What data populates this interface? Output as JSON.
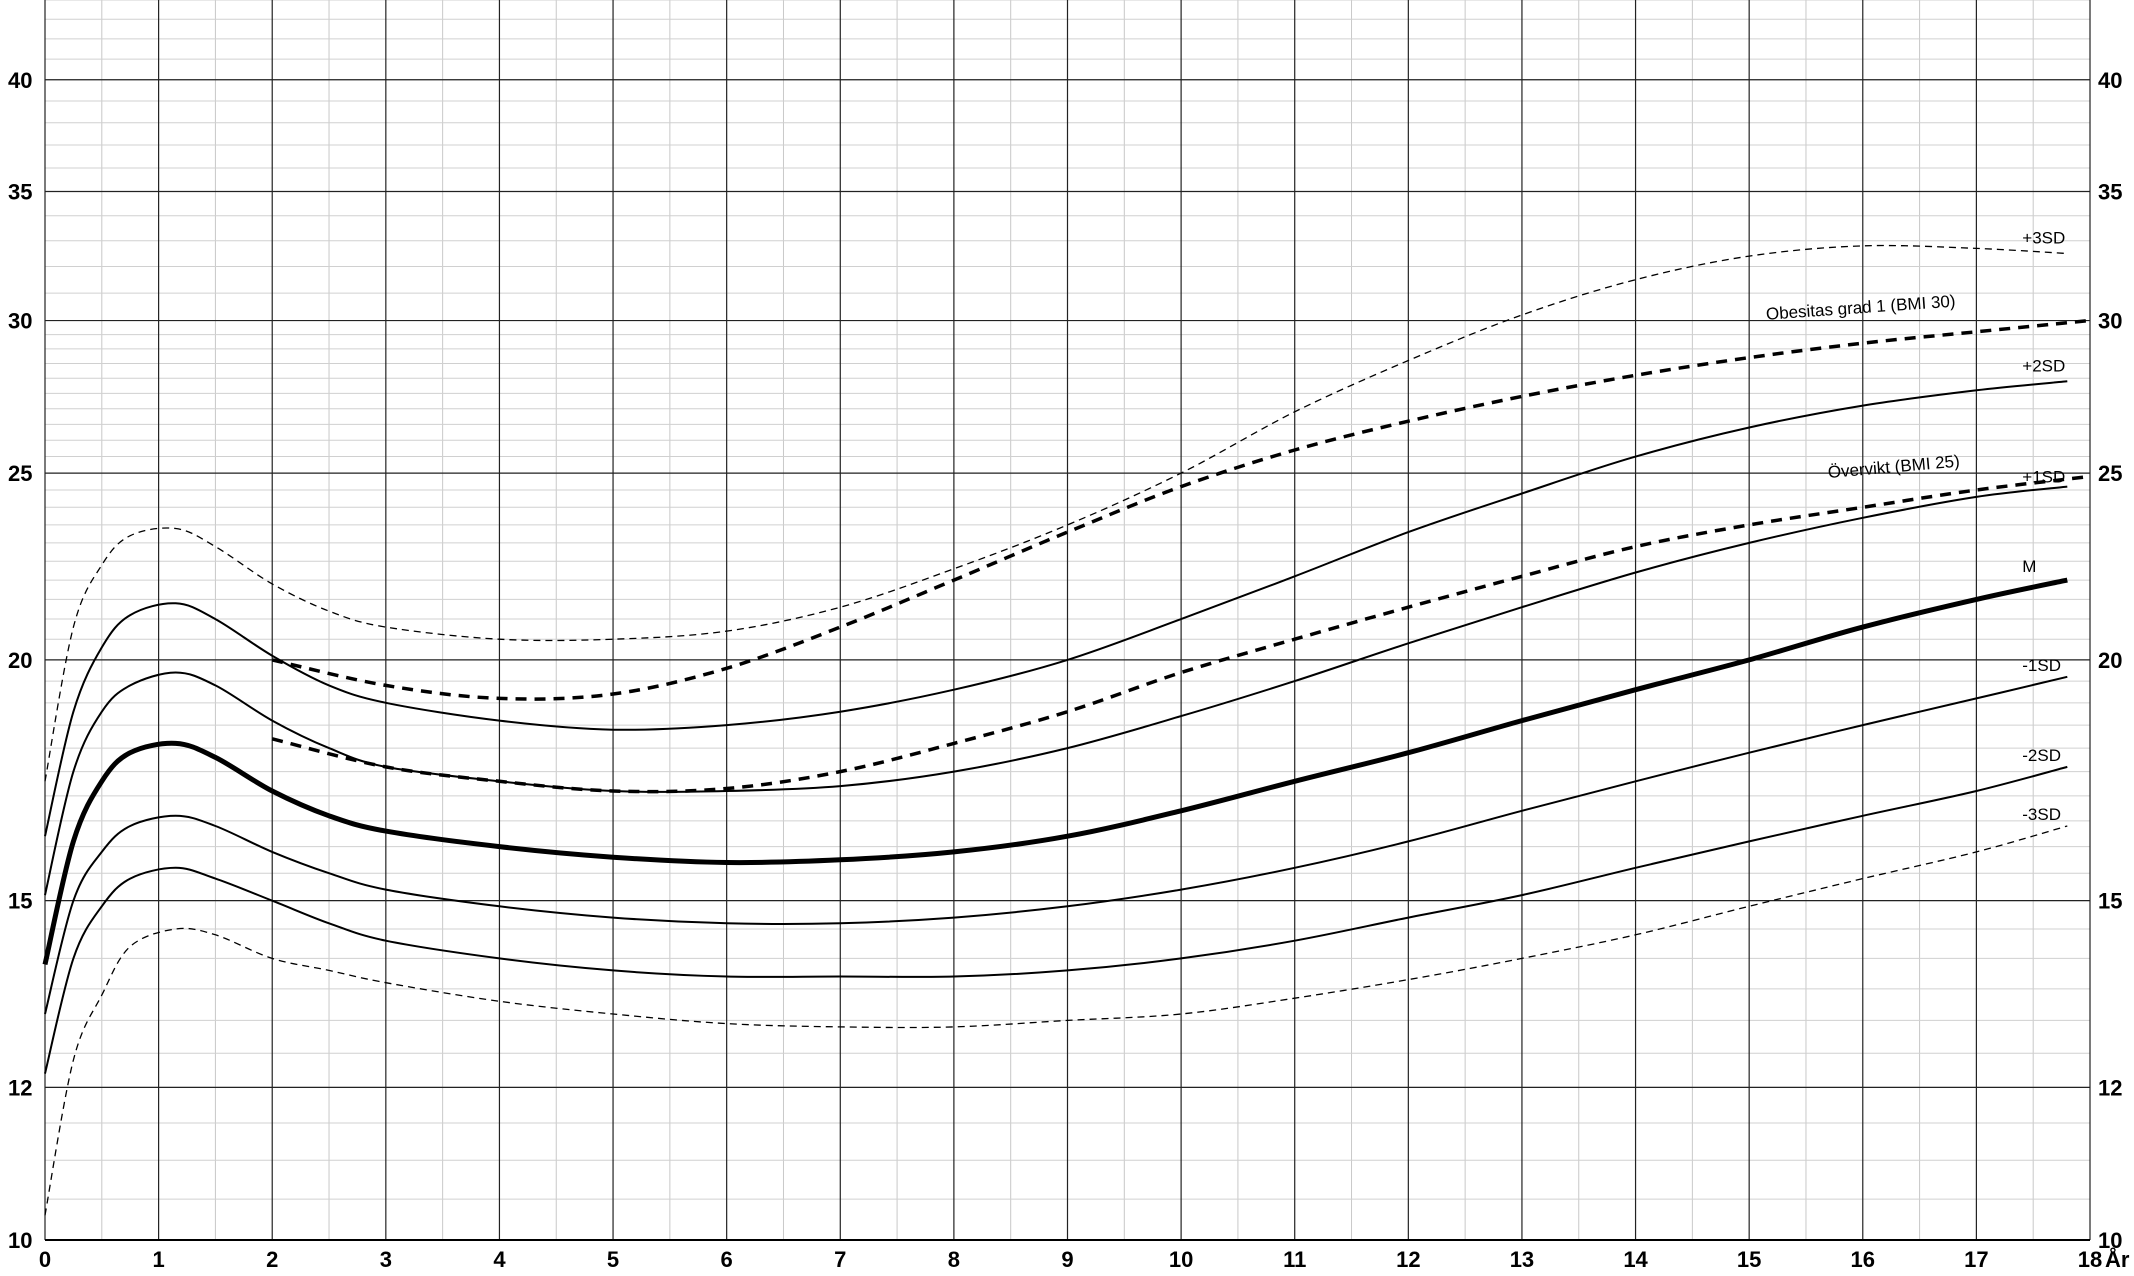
{
  "chart_data": {
    "type": "line",
    "title": "",
    "xlabel": "År",
    "ylabel": "",
    "y_scale": "log",
    "xlim": [
      0,
      18
    ],
    "ylim": [
      10,
      44
    ],
    "grid": true,
    "x_ticks": [
      "0",
      "1",
      "2",
      "3",
      "4",
      "5",
      "6",
      "7",
      "8",
      "9",
      "10",
      "11",
      "12",
      "13",
      "14",
      "15",
      "16",
      "17",
      "18"
    ],
    "y_ticks": [
      {
        "value": 10,
        "label": "10"
      },
      {
        "value": 12,
        "label": "12"
      },
      {
        "value": 15,
        "label": "15"
      },
      {
        "value": 20,
        "label": "20"
      },
      {
        "value": 25,
        "label": "25"
      },
      {
        "value": 30,
        "label": "30"
      },
      {
        "value": 35,
        "label": "35"
      },
      {
        "value": 40,
        "label": "40"
      }
    ],
    "series": [
      {
        "name": "+3SD",
        "style": "thin-dashed",
        "points": [
          [
            0,
            17.3
          ],
          [
            0.25,
            20.8
          ],
          [
            0.5,
            22.4
          ],
          [
            0.75,
            23.2
          ],
          [
            1.15,
            23.4
          ],
          [
            1.5,
            22.9
          ],
          [
            2,
            21.9
          ],
          [
            2.5,
            21.2
          ],
          [
            3,
            20.8
          ],
          [
            4,
            20.5
          ],
          [
            5,
            20.5
          ],
          [
            6,
            20.7
          ],
          [
            7,
            21.3
          ],
          [
            8,
            22.3
          ],
          [
            9,
            23.5
          ],
          [
            10,
            25.0
          ],
          [
            11,
            26.9
          ],
          [
            12,
            28.6
          ],
          [
            13,
            30.2
          ],
          [
            14,
            31.5
          ],
          [
            15,
            32.4
          ],
          [
            16,
            32.8
          ],
          [
            17,
            32.7
          ],
          [
            17.8,
            32.5
          ]
        ]
      },
      {
        "name": "+2SD",
        "style": "solid",
        "points": [
          [
            0,
            16.2
          ],
          [
            0.25,
            18.8
          ],
          [
            0.5,
            20.3
          ],
          [
            0.75,
            21.1
          ],
          [
            1.15,
            21.4
          ],
          [
            1.5,
            21.0
          ],
          [
            2,
            20.1
          ],
          [
            2.5,
            19.4
          ],
          [
            3,
            19.0
          ],
          [
            4,
            18.6
          ],
          [
            5,
            18.4
          ],
          [
            6,
            18.5
          ],
          [
            7,
            18.8
          ],
          [
            8,
            19.3
          ],
          [
            9,
            20.0
          ],
          [
            10,
            21.0
          ],
          [
            11,
            22.1
          ],
          [
            12,
            23.3
          ],
          [
            13,
            24.4
          ],
          [
            14,
            25.5
          ],
          [
            15,
            26.4
          ],
          [
            16,
            27.1
          ],
          [
            17,
            27.6
          ],
          [
            17.8,
            27.9
          ]
        ]
      },
      {
        "name": "+1SD",
        "style": "solid",
        "points": [
          [
            0,
            15.1
          ],
          [
            0.25,
            17.5
          ],
          [
            0.5,
            18.8
          ],
          [
            0.75,
            19.4
          ],
          [
            1.15,
            19.7
          ],
          [
            1.5,
            19.4
          ],
          [
            2,
            18.6
          ],
          [
            2.5,
            18.0
          ],
          [
            3,
            17.6
          ],
          [
            4,
            17.3
          ],
          [
            5,
            17.1
          ],
          [
            6,
            17.1
          ],
          [
            7,
            17.2
          ],
          [
            8,
            17.5
          ],
          [
            9,
            18.0
          ],
          [
            10,
            18.7
          ],
          [
            11,
            19.5
          ],
          [
            12,
            20.4
          ],
          [
            13,
            21.3
          ],
          [
            14,
            22.2
          ],
          [
            15,
            23.0
          ],
          [
            16,
            23.7
          ],
          [
            17,
            24.3
          ],
          [
            17.8,
            24.6
          ]
        ]
      },
      {
        "name": "M",
        "style": "bold",
        "points": [
          [
            0,
            13.9
          ],
          [
            0.25,
            16.1
          ],
          [
            0.5,
            17.3
          ],
          [
            0.75,
            17.9
          ],
          [
            1.15,
            18.1
          ],
          [
            1.5,
            17.8
          ],
          [
            2,
            17.1
          ],
          [
            2.5,
            16.6
          ],
          [
            3,
            16.3
          ],
          [
            4,
            16.0
          ],
          [
            5,
            15.8
          ],
          [
            6,
            15.7
          ],
          [
            7,
            15.75
          ],
          [
            8,
            15.9
          ],
          [
            9,
            16.2
          ],
          [
            10,
            16.7
          ],
          [
            11,
            17.3
          ],
          [
            12,
            17.9
          ],
          [
            13,
            18.6
          ],
          [
            14,
            19.3
          ],
          [
            15,
            20.0
          ],
          [
            16,
            20.8
          ],
          [
            17,
            21.5
          ],
          [
            17.8,
            22.0
          ]
        ]
      },
      {
        "name": "-1SD",
        "style": "solid",
        "points": [
          [
            0,
            13.1
          ],
          [
            0.25,
            15.0
          ],
          [
            0.5,
            15.9
          ],
          [
            0.75,
            16.4
          ],
          [
            1.15,
            16.6
          ],
          [
            1.5,
            16.4
          ],
          [
            2,
            15.9
          ],
          [
            2.5,
            15.5
          ],
          [
            3,
            15.2
          ],
          [
            4,
            14.9
          ],
          [
            5,
            14.7
          ],
          [
            6,
            14.6
          ],
          [
            7,
            14.6
          ],
          [
            8,
            14.7
          ],
          [
            9,
            14.9
          ],
          [
            10,
            15.2
          ],
          [
            11,
            15.6
          ],
          [
            12,
            16.1
          ],
          [
            13,
            16.7
          ],
          [
            14,
            17.3
          ],
          [
            15,
            17.9
          ],
          [
            16,
            18.5
          ],
          [
            17,
            19.1
          ],
          [
            17.8,
            19.6
          ]
        ]
      },
      {
        "name": "-2SD",
        "style": "solid",
        "points": [
          [
            0,
            12.2
          ],
          [
            0.25,
            14.0
          ],
          [
            0.5,
            14.9
          ],
          [
            0.75,
            15.4
          ],
          [
            1.15,
            15.6
          ],
          [
            1.5,
            15.4
          ],
          [
            2,
            15.0
          ],
          [
            2.5,
            14.6
          ],
          [
            3,
            14.3
          ],
          [
            4,
            14.0
          ],
          [
            5,
            13.8
          ],
          [
            6,
            13.7
          ],
          [
            7,
            13.7
          ],
          [
            8,
            13.7
          ],
          [
            9,
            13.8
          ],
          [
            10,
            14.0
          ],
          [
            11,
            14.3
          ],
          [
            12,
            14.7
          ],
          [
            13,
            15.1
          ],
          [
            14,
            15.6
          ],
          [
            15,
            16.1
          ],
          [
            16,
            16.6
          ],
          [
            17,
            17.1
          ],
          [
            17.8,
            17.6
          ]
        ]
      },
      {
        "name": "-3SD",
        "style": "thin-dashed",
        "points": [
          [
            0,
            10.3
          ],
          [
            0.25,
            12.4
          ],
          [
            0.5,
            13.4
          ],
          [
            0.75,
            14.2
          ],
          [
            1.15,
            14.5
          ],
          [
            1.5,
            14.4
          ],
          [
            2,
            14.0
          ],
          [
            2.5,
            13.8
          ],
          [
            3,
            13.6
          ],
          [
            4,
            13.3
          ],
          [
            5,
            13.1
          ],
          [
            6,
            12.95
          ],
          [
            7,
            12.9
          ],
          [
            8,
            12.9
          ],
          [
            9,
            13.0
          ],
          [
            10,
            13.1
          ],
          [
            11,
            13.35
          ],
          [
            12,
            13.65
          ],
          [
            13,
            14.0
          ],
          [
            14,
            14.4
          ],
          [
            15,
            14.9
          ],
          [
            16,
            15.4
          ],
          [
            17,
            15.9
          ],
          [
            17.8,
            16.4
          ]
        ]
      },
      {
        "name": "Obesitas grad 1 (BMI 30)",
        "style": "bold-dashed",
        "points": [
          [
            2,
            20.0
          ],
          [
            3,
            19.4
          ],
          [
            4,
            19.1
          ],
          [
            5,
            19.2
          ],
          [
            6,
            19.8
          ],
          [
            7,
            20.8
          ],
          [
            8,
            22.0
          ],
          [
            9,
            23.3
          ],
          [
            10,
            24.6
          ],
          [
            11,
            25.7
          ],
          [
            12,
            26.6
          ],
          [
            13,
            27.4
          ],
          [
            14,
            28.1
          ],
          [
            15,
            28.7
          ],
          [
            16,
            29.2
          ],
          [
            17,
            29.6
          ],
          [
            18,
            30.0
          ]
        ]
      },
      {
        "name": "Övervikt (BMI 25)",
        "style": "bold-dashed",
        "points": [
          [
            2,
            18.2
          ],
          [
            3,
            17.6
          ],
          [
            4,
            17.3
          ],
          [
            5,
            17.1
          ],
          [
            6,
            17.15
          ],
          [
            7,
            17.5
          ],
          [
            8,
            18.1
          ],
          [
            9,
            18.8
          ],
          [
            10,
            19.7
          ],
          [
            11,
            20.5
          ],
          [
            12,
            21.3
          ],
          [
            13,
            22.1
          ],
          [
            14,
            22.9
          ],
          [
            15,
            23.5
          ],
          [
            16,
            24.0
          ],
          [
            17,
            24.5
          ],
          [
            18,
            24.9
          ]
        ]
      }
    ]
  }
}
